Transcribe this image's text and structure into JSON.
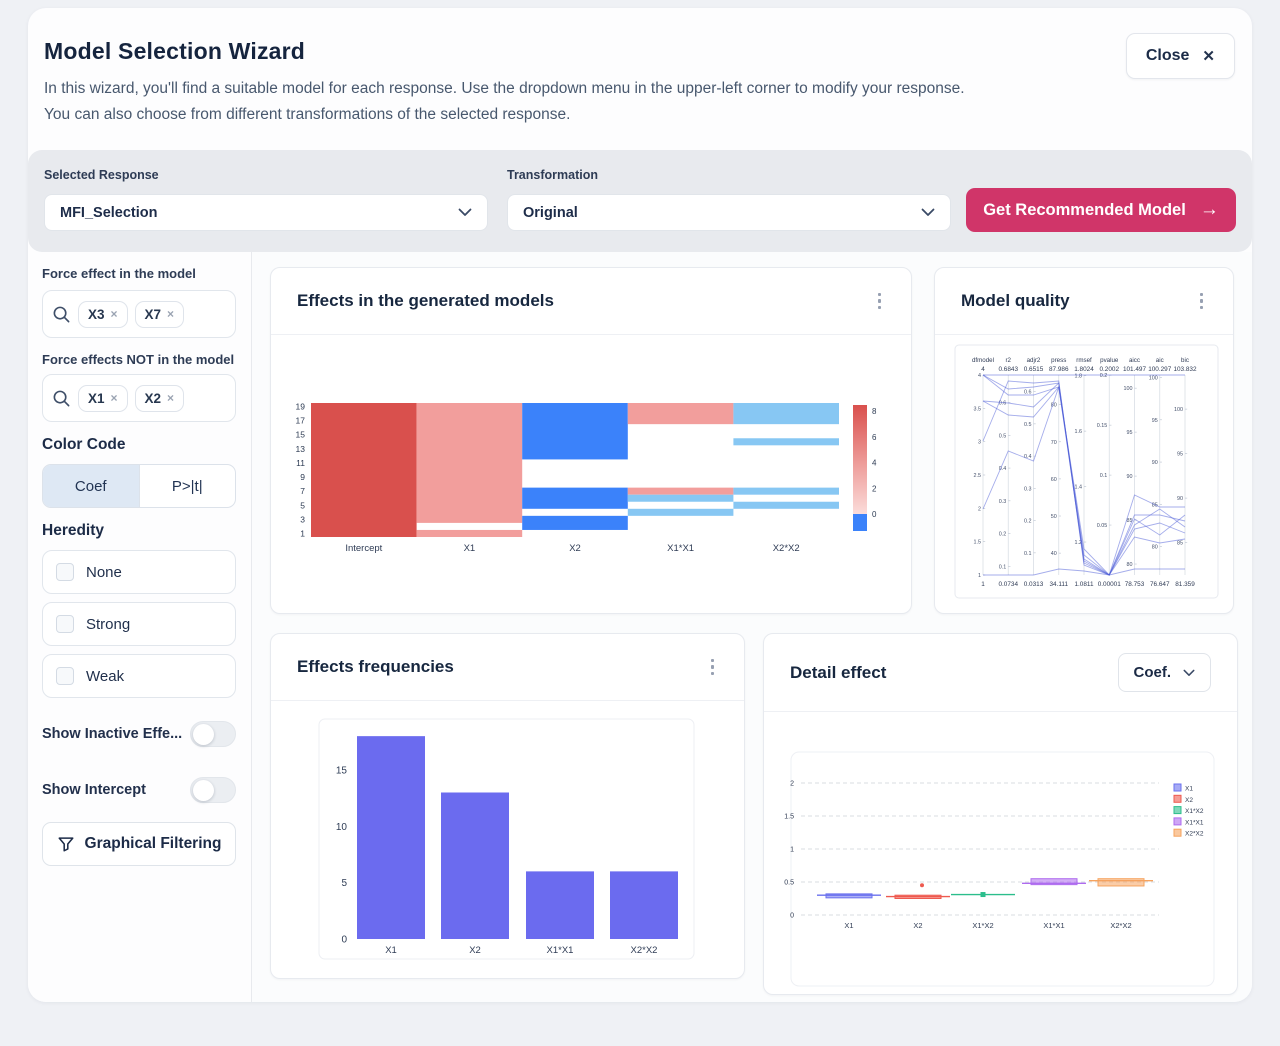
{
  "header": {
    "title": "Model Selection Wizard",
    "description_line1": "In this wizard, you'll find a suitable model for each response. Use the dropdown menu in the upper-left corner to modify your response.",
    "description_line2": "You can also choose from different transformations of the selected response.",
    "close_label": "Close",
    "close_icon": "✕"
  },
  "controls": {
    "selected_response": {
      "label": "Selected Response",
      "value": "MFI_Selection"
    },
    "transformation": {
      "label": "Transformation",
      "value": "Original"
    },
    "cta": {
      "label": "Get Recommended Model",
      "arrow": "→",
      "color": "#D03569"
    }
  },
  "sidebar": {
    "force_in": {
      "label": "Force effect in the model",
      "chips": [
        {
          "label": "X3",
          "remove_icon": "×"
        },
        {
          "label": "X7",
          "remove_icon": "×"
        }
      ]
    },
    "force_out": {
      "label": "Force effects NOT in the model",
      "chips": [
        {
          "label": "X1",
          "remove_icon": "×"
        },
        {
          "label": "X2",
          "remove_icon": "×"
        }
      ]
    },
    "color_code": {
      "label": "Color Code",
      "options": [
        {
          "label": "Coef",
          "selected": true
        },
        {
          "label": "P>|t|",
          "selected": false
        }
      ]
    },
    "heredity": {
      "label": "Heredity",
      "options": [
        {
          "label": "None",
          "checked": false
        },
        {
          "label": "Strong",
          "checked": false
        },
        {
          "label": "Weak",
          "checked": false
        }
      ]
    },
    "toggles": [
      {
        "label": "Show Inactive Effe...",
        "on": false
      },
      {
        "label": "Show Intercept",
        "on": false
      }
    ],
    "graphical_filtering": {
      "label": "Graphical Filtering"
    }
  },
  "cards": {
    "effects_models": {
      "title": "Effects in the generated models"
    },
    "model_quality": {
      "title": "Model quality"
    },
    "effects_frequencies": {
      "title": "Effects frequencies"
    },
    "detail_effect": {
      "title": "Detail effect",
      "selector_value": "Coef."
    }
  },
  "chart_data": [
    {
      "type": "heatmap",
      "title": "Effects in the generated models",
      "x_categories": [
        "Intercept",
        "X1",
        "X2",
        "X1*X1",
        "X2*X2"
      ],
      "y_tick_labels": [
        1,
        3,
        5,
        7,
        9,
        11,
        13,
        15,
        17,
        19
      ],
      "rows": 19,
      "colorbar_ticks": [
        0,
        2,
        4,
        6,
        8
      ],
      "colorbar_range": [
        0,
        8
      ],
      "colors": {
        "strong_pos": "#D9504D",
        "light_pos": "#F29E9C",
        "strong_neg": "#3B82FA",
        "light_neg": "#87C7F3"
      },
      "segments": [
        {
          "col": "Intercept",
          "value": "strong_pos",
          "rows": [
            [
              1,
              19
            ]
          ]
        },
        {
          "col": "X1",
          "value": "light_pos",
          "rows": [
            [
              1,
              1
            ],
            [
              3,
              19
            ]
          ]
        },
        {
          "col": "X2",
          "value": "strong_neg",
          "rows": [
            [
              2,
              3
            ],
            [
              5,
              7
            ],
            [
              12,
              19
            ]
          ]
        },
        {
          "col": "X1*X1",
          "value": "light_pos",
          "rows": [
            [
              7,
              7
            ],
            [
              17,
              19
            ]
          ]
        },
        {
          "col": "X1*X1",
          "value": "light_neg",
          "rows": [
            [
              4,
              4
            ],
            [
              6,
              6
            ]
          ]
        },
        {
          "col": "X2*X2",
          "value": "light_neg",
          "rows": [
            [
              5,
              5
            ],
            [
              7,
              7
            ],
            [
              14,
              14
            ],
            [
              17,
              19
            ]
          ]
        }
      ]
    },
    {
      "type": "parallel-coordinates",
      "title": "Model quality",
      "line_color": "#4C5BD8",
      "axes": [
        {
          "name": "dfmodel",
          "min": 1,
          "max": 4,
          "max_value": "4",
          "min_value": "1",
          "ticks": [
            1,
            1.5,
            2,
            2.5,
            3,
            3.5,
            4
          ]
        },
        {
          "name": "r2",
          "min": 0.0734,
          "max": 0.6843,
          "max_value": "0.6843",
          "min_value": "0.0734",
          "ticks": [
            0.1,
            0.2,
            0.3,
            0.4,
            0.5,
            0.6
          ]
        },
        {
          "name": "adjr2",
          "min": 0.0313,
          "max": 0.6515,
          "max_value": "0.6515",
          "min_value": "0.0313",
          "ticks": [
            0.1,
            0.2,
            0.3,
            0.4,
            0.5,
            0.6
          ]
        },
        {
          "name": "press",
          "min": 34.111,
          "max": 87.986,
          "max_value": "87.986",
          "min_value": "34.111",
          "ticks": [
            40,
            50,
            60,
            70,
            80
          ]
        },
        {
          "name": "rmsef",
          "min": 1.0811,
          "max": 1.8024,
          "max_value": "1.8024",
          "min_value": "1.0811",
          "ticks": [
            1.2,
            1.4,
            1.6,
            1.8
          ]
        },
        {
          "name": "pvalue",
          "min": 1e-05,
          "max": 0.2002,
          "max_value": "0.2002",
          "min_value": "0.00001",
          "ticks": [
            0.05,
            0.1,
            0.15,
            0.2
          ]
        },
        {
          "name": "aicc",
          "min": 78.753,
          "max": 101.497,
          "max_value": "101.497",
          "min_value": "78.753",
          "ticks": [
            80,
            85,
            90,
            95,
            100
          ]
        },
        {
          "name": "aic",
          "min": 76.647,
          "max": 100.297,
          "max_value": "100.297",
          "min_value": "76.647",
          "ticks": [
            80,
            85,
            90,
            95,
            100
          ]
        },
        {
          "name": "bic",
          "min": 81.359,
          "max": 103.832,
          "max_value": "103.832",
          "min_value": "81.359",
          "ticks": [
            85,
            90,
            95,
            100
          ]
        }
      ],
      "lines_normalized": [
        [
          1,
          1,
          1,
          1,
          1,
          1,
          1,
          1,
          1
        ],
        [
          0,
          0,
          0,
          0.03,
          0.02,
          0,
          0.03,
          0.03,
          0.03
        ],
        [
          1,
          0.93,
          0.94,
          0.96,
          0.06,
          0,
          0.3,
          0.3,
          0.27
        ],
        [
          1,
          0.9,
          0.9,
          0.94,
          0.1,
          0,
          0.23,
          0.26,
          0.21
        ],
        [
          0.87,
          0.86,
          0.84,
          0.96,
          0.08,
          0,
          0.4,
          0.34,
          0.34
        ],
        [
          0.87,
          0.8,
          0.79,
          0.94,
          0.13,
          0,
          0.28,
          0.2,
          0.3
        ],
        [
          0.67,
          0.97,
          0.96,
          0.97,
          0.05,
          0,
          0.25,
          0.33,
          0.24
        ],
        [
          0.33,
          0.62,
          0.57,
          0.94,
          0.07,
          0,
          0.19,
          0.16,
          0.18
        ]
      ]
    },
    {
      "type": "bar",
      "title": "Effects frequencies",
      "categories": [
        "X1",
        "X2",
        "X1*X1",
        "X2*X2"
      ],
      "values": [
        18,
        13,
        6,
        6
      ],
      "yticks": [
        0,
        5,
        10,
        15
      ],
      "ylim": [
        0,
        19
      ],
      "bar_color": "#6B6BEF"
    },
    {
      "type": "box",
      "title": "Detail effect",
      "categories": [
        "X1",
        "X2",
        "X1*X2",
        "X1*X1",
        "X2*X2"
      ],
      "yticks": [
        0,
        0.5,
        1,
        1.5,
        2
      ],
      "ylim": [
        0,
        2.2
      ],
      "legend": [
        "X1",
        "X2",
        "X1*X2",
        "X1*X1",
        "X2*X2"
      ],
      "series": [
        {
          "name": "X1",
          "color": "#6A71EE",
          "q1": 0.26,
          "q3": 0.32,
          "median": 0.3,
          "whisker_low": 0.25,
          "whisker_high": 0.33,
          "outliers": []
        },
        {
          "name": "X2",
          "color": "#EE5A4F",
          "q1": 0.25,
          "q3": 0.3,
          "median": 0.28,
          "whisker_low": 0.24,
          "whisker_high": 0.31,
          "outliers": [
            0.45
          ]
        },
        {
          "name": "X1*X2",
          "color": "#2BBE8C",
          "q1": 0.3,
          "q3": 0.31,
          "median": 0.31,
          "whisker_low": 0.28,
          "whisker_high": 0.33,
          "outliers": []
        },
        {
          "name": "X1*X1",
          "color": "#AE6BEF",
          "q1": 0.46,
          "q3": 0.55,
          "median": 0.48,
          "whisker_low": 0.45,
          "whisker_high": 0.55,
          "outliers": []
        },
        {
          "name": "X2*X2",
          "color": "#F6A35E",
          "q1": 0.44,
          "q3": 0.55,
          "median": 0.52,
          "whisker_low": 0.44,
          "whisker_high": 0.55,
          "outliers": []
        }
      ]
    }
  ]
}
